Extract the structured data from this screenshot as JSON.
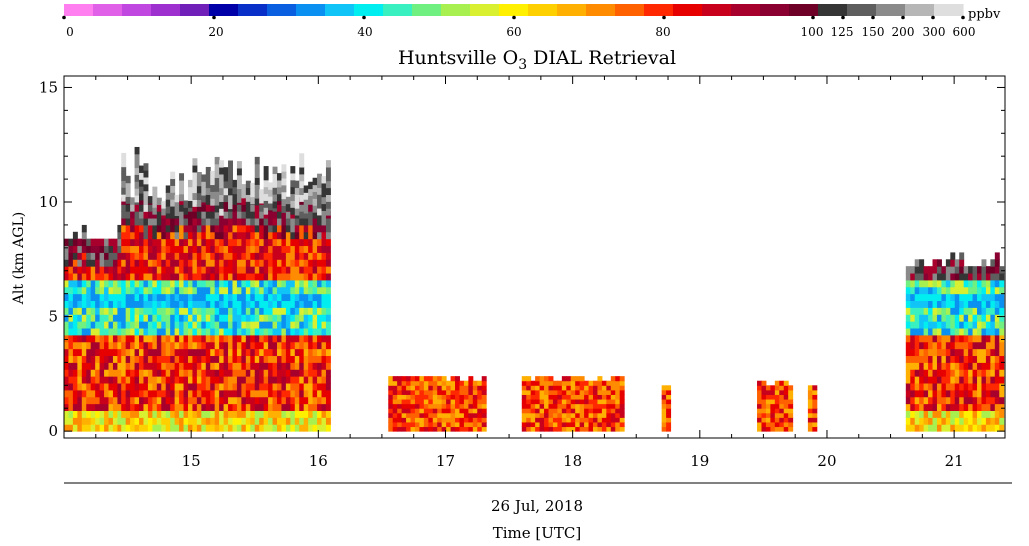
{
  "chart_data": {
    "type": "heatmap",
    "title": "Huntsville O",
    "title_subscript": "3",
    "title_suffix": " DIAL Retrieval",
    "ylabel": "Alt (km AGL)",
    "xlabel_date": "26 Jul, 2018",
    "xlabel": "Time [UTC]",
    "xlim": [
      14.0,
      21.4
    ],
    "ylim": [
      -0.3,
      15.5
    ],
    "x_ticks": [
      15,
      16,
      17,
      18,
      19,
      20,
      21
    ],
    "y_ticks": [
      0,
      5,
      10,
      15
    ],
    "colorbar": {
      "unit": "ppbv",
      "tick_labels": [
        "0",
        "20",
        "40",
        "60",
        "80",
        "100",
        "125",
        "150",
        "200",
        "300",
        "600"
      ],
      "colors": [
        "#ff7ff0",
        "#e060e8",
        "#c048e0",
        "#9e30d0",
        "#7020b8",
        "#0000a8",
        "#0830c8",
        "#0a5ee0",
        "#0a90f0",
        "#10c4f8",
        "#00eef0",
        "#38f0c0",
        "#70f080",
        "#a8f050",
        "#d8f030",
        "#fff000",
        "#ffd000",
        "#ffb000",
        "#ff8c00",
        "#ff6000",
        "#ff2800",
        "#e60000",
        "#c8001c",
        "#a8002c",
        "#8a0030",
        "#6e0028",
        "#353535",
        "#5e5e5e",
        "#8a8a8a",
        "#b6b6b6",
        "#dedede"
      ]
    },
    "segments": [
      {
        "x": [
          14.0,
          14.45
        ],
        "ytop": 8.5
      },
      {
        "x": [
          14.45,
          16.08
        ],
        "ytop": 9.8
      },
      {
        "x": [
          16.55,
          16.9
        ],
        "ytop": 2.3
      },
      {
        "x": [
          16.9,
          17.3
        ],
        "ytop": 2.2
      },
      {
        "x": [
          17.6,
          18.4
        ],
        "ytop": 2.2
      },
      {
        "x": [
          18.7,
          18.75
        ],
        "ytop": 1.9
      },
      {
        "x": [
          19.45,
          19.7
        ],
        "ytop": 2.0
      },
      {
        "x": [
          19.85,
          19.9
        ],
        "ytop": 1.9
      },
      {
        "x": [
          20.62,
          21.38
        ],
        "ytop": 7.3
      }
    ]
  }
}
